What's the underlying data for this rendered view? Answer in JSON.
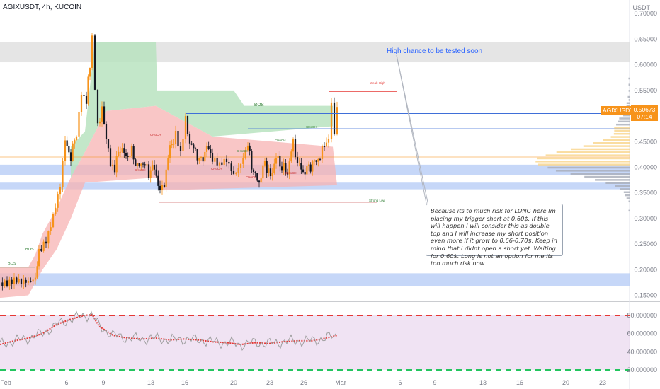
{
  "header": {
    "title": "AGIXUSDT, 4h, KUCOIN",
    "unit": "USDT"
  },
  "price": {
    "symbol_tag": "AGIXUSDT",
    "last": "0.50673",
    "countdown": "07:14"
  },
  "annotations": {
    "callout": "High chance to be tested soon",
    "note": "Because its to much risk for LONG here Im placing my trigger short at 0.60$. If this will happen I will consider this as double top and I will increase my short position even more if it grow to 0.66-0.70$. Keep in mind that I didnt open a short yet. Waiting for 0.60$. Long is not an option for me its too much risk now.",
    "bos_top": "BOS",
    "bos_left": "BOS",
    "bos_left2": "BOS",
    "weak_high": "Weak High",
    "strong_low": "Strong Low",
    "choch_labels": [
      "CHoCH",
      "CHoCH",
      "CHoCH",
      "CHoCH",
      "CHoCH",
      "CHoCH",
      "CHoCH",
      "CHoCH"
    ]
  },
  "colors": {
    "candle_up": "#f7931a",
    "candle_down": "#131722",
    "green_zone": "#b9e3bf",
    "red_zone": "#f7b3b3",
    "blue_zone": "#b3c9f5",
    "rsi_line": "#e53935",
    "rsi_bg": "#ead7ee",
    "accent": "#2962ff"
  },
  "chart_data": {
    "type": "candlestick",
    "symbol": "AGIXUSDT",
    "interval": "4h",
    "exchange": "KUCOIN",
    "y_axis": {
      "ticks": [
        0.15,
        0.2,
        0.25,
        0.3,
        0.35,
        0.4,
        0.45,
        0.5,
        0.55,
        0.6,
        0.65,
        0.7
      ],
      "range": [
        0.13,
        0.71
      ]
    },
    "x_axis": {
      "ticks": [
        "Feb",
        "6",
        "9",
        "13",
        "16",
        "20",
        "23",
        "26",
        "Mar",
        "6",
        "9",
        "13",
        "16",
        "20",
        "23"
      ]
    },
    "path": [
      [
        0,
        0.175
      ],
      [
        10,
        0.18
      ],
      [
        20,
        0.18
      ],
      [
        30,
        0.17
      ],
      [
        40,
        0.175
      ],
      [
        50,
        0.19
      ],
      [
        55,
        0.23
      ],
      [
        65,
        0.26
      ],
      [
        75,
        0.31
      ],
      [
        85,
        0.36
      ],
      [
        92,
        0.45
      ],
      [
        100,
        0.42
      ],
      [
        108,
        0.47
      ],
      [
        115,
        0.55
      ],
      [
        122,
        0.53
      ],
      [
        127,
        0.6
      ],
      [
        130,
        0.66
      ],
      [
        134,
        0.56
      ],
      [
        138,
        0.48
      ],
      [
        144,
        0.52
      ],
      [
        150,
        0.45
      ],
      [
        156,
        0.41
      ],
      [
        162,
        0.4
      ],
      [
        170,
        0.44
      ],
      [
        178,
        0.42
      ],
      [
        186,
        0.43
      ],
      [
        194,
        0.4
      ],
      [
        202,
        0.41
      ],
      [
        210,
        0.39
      ],
      [
        218,
        0.4
      ],
      [
        226,
        0.35
      ],
      [
        232,
        0.37
      ],
      [
        240,
        0.44
      ],
      [
        248,
        0.46
      ],
      [
        255,
        0.42
      ],
      [
        262,
        0.49
      ],
      [
        268,
        0.45
      ],
      [
        276,
        0.43
      ],
      [
        284,
        0.41
      ],
      [
        292,
        0.44
      ],
      [
        300,
        0.42
      ],
      [
        310,
        0.4
      ],
      [
        320,
        0.41
      ],
      [
        330,
        0.39
      ],
      [
        340,
        0.41
      ],
      [
        350,
        0.44
      ],
      [
        358,
        0.39
      ],
      [
        366,
        0.37
      ],
      [
        374,
        0.41
      ],
      [
        382,
        0.38
      ],
      [
        390,
        0.42
      ],
      [
        398,
        0.4
      ],
      [
        406,
        0.39
      ],
      [
        414,
        0.45
      ],
      [
        420,
        0.41
      ],
      [
        428,
        0.39
      ],
      [
        436,
        0.4
      ],
      [
        444,
        0.41
      ],
      [
        452,
        0.42
      ],
      [
        458,
        0.44
      ],
      [
        464,
        0.46
      ],
      [
        468,
        0.53
      ],
      [
        472,
        0.47
      ],
      [
        476,
        0.51
      ]
    ],
    "levels": [
      {
        "name": "Weak High",
        "value": 0.548
      },
      {
        "name": "BOS",
        "value": 0.505
      },
      {
        "name": "Strong Low",
        "value": 0.332
      }
    ],
    "zones": [
      {
        "type": "resistance",
        "from": 0.605,
        "to": 0.645
      },
      {
        "type": "demand",
        "from": 0.385,
        "to": 0.405
      },
      {
        "type": "demand",
        "from": 0.357,
        "to": 0.37
      },
      {
        "type": "demand",
        "from": 0.168,
        "to": 0.193
      }
    ],
    "rsi": {
      "ticks": [
        20,
        40,
        60,
        80
      ],
      "overbought": 80,
      "oversold": 20,
      "values": [
        [
          0,
          48
        ],
        [
          20,
          52
        ],
        [
          40,
          55
        ],
        [
          60,
          60
        ],
        [
          80,
          70
        ],
        [
          100,
          76
        ],
        [
          120,
          80
        ],
        [
          130,
          81
        ],
        [
          140,
          68
        ],
        [
          160,
          58
        ],
        [
          180,
          55
        ],
        [
          200,
          54
        ],
        [
          220,
          55
        ],
        [
          240,
          53
        ],
        [
          260,
          54
        ],
        [
          280,
          53
        ],
        [
          300,
          51
        ],
        [
          320,
          50
        ],
        [
          340,
          48
        ],
        [
          360,
          50
        ],
        [
          380,
          49
        ],
        [
          400,
          51
        ],
        [
          420,
          52
        ],
        [
          440,
          52
        ],
        [
          460,
          55
        ],
        [
          476,
          58
        ]
      ]
    }
  }
}
